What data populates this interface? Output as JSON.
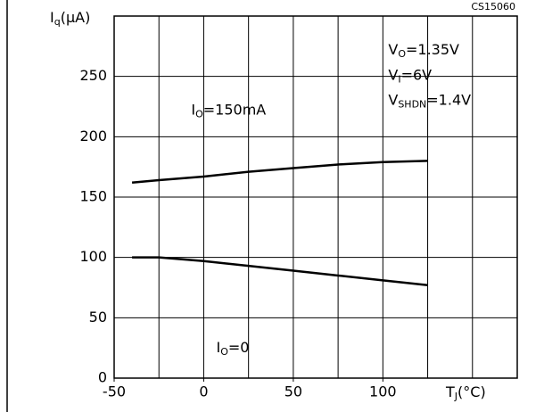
{
  "chart_data": {
    "type": "line",
    "code": "CS15060",
    "y_label": {
      "main": "I",
      "sub": "q",
      "suffix": "(μA)"
    },
    "x_label": {
      "main": "T",
      "sub": "J",
      "suffix": "(°C)"
    },
    "xlim": [
      -50,
      175
    ],
    "xticks": [
      -50,
      0,
      50,
      100
    ],
    "ylim": [
      0,
      300
    ],
    "yticks": [
      0,
      50,
      100,
      150,
      200,
      250
    ],
    "grid": true,
    "grid_step_x": 25,
    "x": [
      -40,
      -25,
      0,
      25,
      50,
      75,
      100,
      125
    ],
    "series": [
      {
        "color": "#000000",
        "values": [
          162,
          164,
          167,
          171,
          174,
          177,
          179,
          180
        ]
      },
      {
        "color": "#000000",
        "values": [
          100,
          100,
          97,
          93,
          89,
          85,
          81,
          77
        ]
      }
    ],
    "annotations": [
      {
        "main": "I",
        "sub": "O",
        "suffix": "=150mA",
        "x": -7,
        "y": 222
      },
      {
        "main": "I",
        "sub": "O",
        "suffix": "=0",
        "x": 7,
        "y": 25
      },
      {
        "main": "V",
        "sub": "O",
        "suffix": "=1.35V",
        "x": 103,
        "y": 272
      },
      {
        "main": "V",
        "sub": "I",
        "suffix": "=6V",
        "x": 103,
        "y": 251
      },
      {
        "main": "V",
        "sub": "SHDN",
        "suffix": "=1.4V",
        "x": 103,
        "y": 230
      }
    ]
  }
}
